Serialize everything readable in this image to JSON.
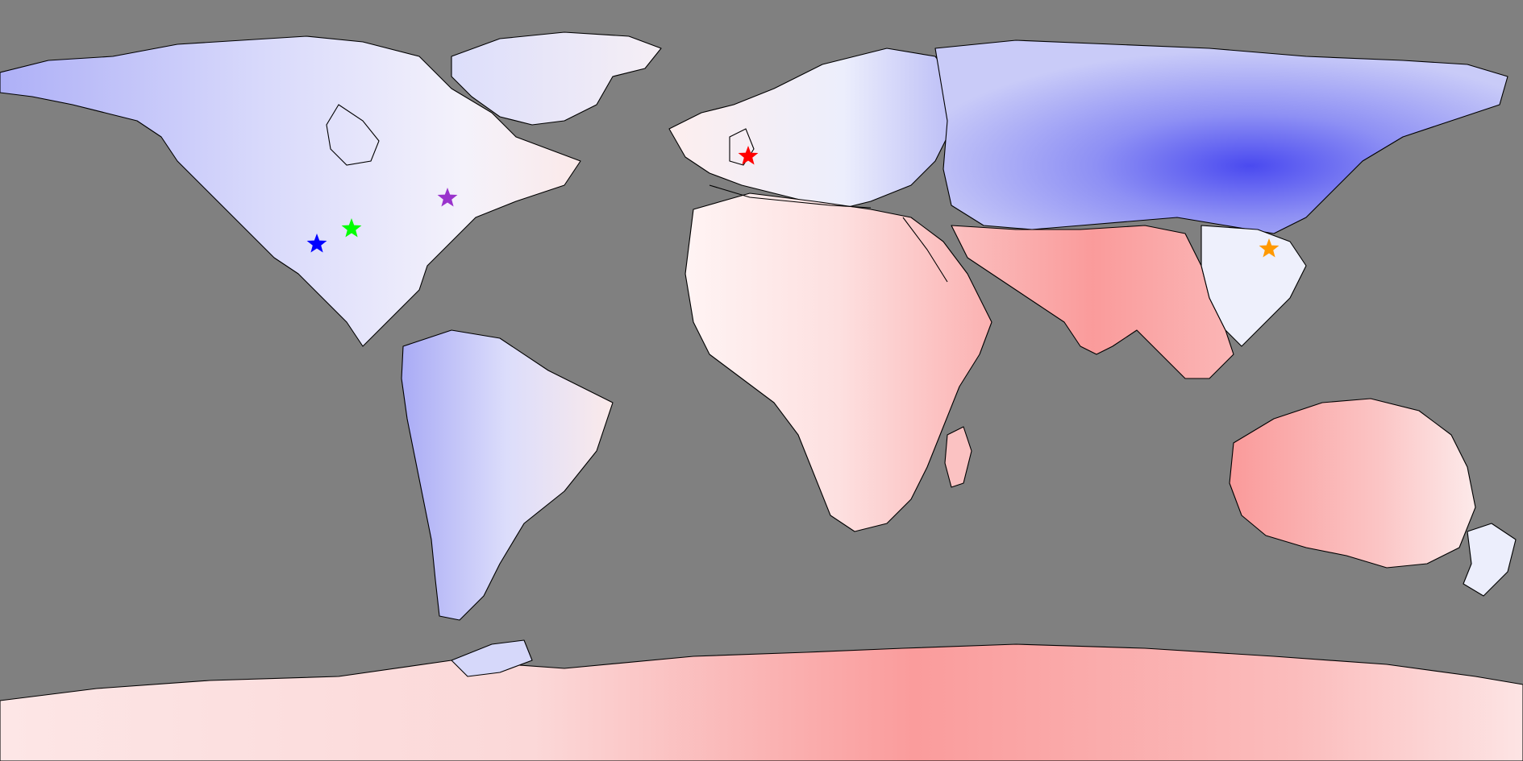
{
  "map": {
    "projection": "equirectangular",
    "background_color": "#808080",
    "color_scale": {
      "cold": "#3c3cf0",
      "neutral": "#ffffff",
      "warm": "#ff8f8f"
    },
    "markers": [
      {
        "color": "#0000ff",
        "icon": "star-icon"
      },
      {
        "color": "#00ff00",
        "icon": "star-icon"
      },
      {
        "color": "#9933cc",
        "icon": "star-icon"
      },
      {
        "color": "#ff0000",
        "icon": "star-icon"
      },
      {
        "color": "#ff9900",
        "icon": "star-icon"
      }
    ]
  }
}
